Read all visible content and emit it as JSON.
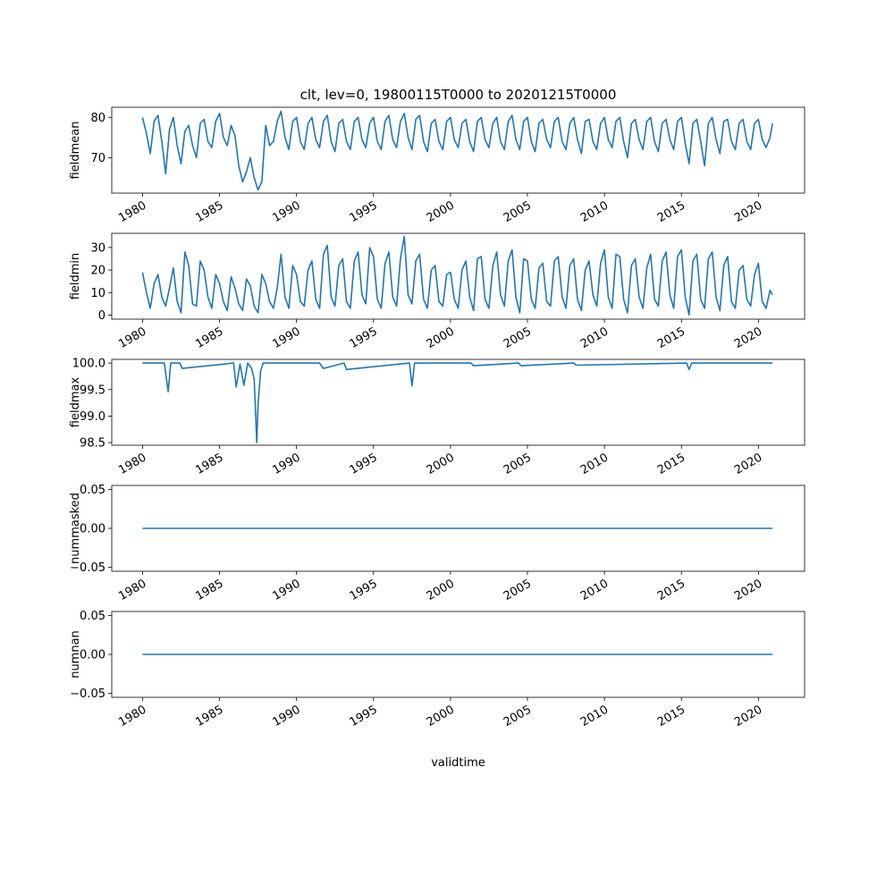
{
  "title": "clt, lev=0, 19800115T0000 to 20201215T0000",
  "xlabel": "validtime",
  "line_color": "#1f77b4",
  "x_tick_labels": [
    "1980",
    "1985",
    "1990",
    "1995",
    "2000",
    "2005",
    "2010",
    "2015",
    "2020"
  ],
  "chart_data": [
    {
      "type": "line",
      "ylabel": "fieldmean",
      "xlim": [
        "1978-01-01",
        "2023-01-01"
      ],
      "ylim": [
        61.2,
        82.5
      ],
      "yticks": [
        70,
        80
      ],
      "ytick_labels": [
        "70",
        "80"
      ],
      "series": [
        {
          "x": [
            "1980-01",
            "1980-04",
            "1980-07",
            "1980-10",
            "1981-01",
            "1981-04",
            "1981-07",
            "1981-10",
            "1982-01",
            "1982-04",
            "1982-07",
            "1982-10",
            "1983-01",
            "1983-04",
            "1983-07",
            "1983-10",
            "1984-01",
            "1984-04",
            "1984-07",
            "1984-10",
            "1985-01",
            "1985-04",
            "1985-07",
            "1985-10",
            "1986-01",
            "1986-04",
            "1986-07",
            "1986-10",
            "1987-01",
            "1987-04",
            "1987-07",
            "1987-10",
            "1988-01",
            "1988-04",
            "1988-07",
            "1988-10",
            "1989-01",
            "1989-04",
            "1989-07",
            "1989-10",
            "1990-01",
            "1990-04",
            "1990-07",
            "1990-10",
            "1991-01",
            "1991-04",
            "1991-07",
            "1991-10",
            "1992-01",
            "1992-04",
            "1992-07",
            "1992-10",
            "1993-01",
            "1993-04",
            "1993-07",
            "1993-10",
            "1994-01",
            "1994-04",
            "1994-07",
            "1994-10",
            "1995-01",
            "1995-04",
            "1995-07",
            "1995-10",
            "1996-01",
            "1996-04",
            "1996-07",
            "1996-10",
            "1997-01",
            "1997-04",
            "1997-07",
            "1997-10",
            "1998-01",
            "1998-04",
            "1998-07",
            "1998-10",
            "1999-01",
            "1999-04",
            "1999-07",
            "1999-10",
            "2000-01",
            "2000-04",
            "2000-07",
            "2000-10",
            "2001-01",
            "2001-04",
            "2001-07",
            "2001-10",
            "2002-01",
            "2002-04",
            "2002-07",
            "2002-10",
            "2003-01",
            "2003-04",
            "2003-07",
            "2003-10",
            "2004-01",
            "2004-04",
            "2004-07",
            "2004-10",
            "2005-01",
            "2005-04",
            "2005-07",
            "2005-10",
            "2006-01",
            "2006-04",
            "2006-07",
            "2006-10",
            "2007-01",
            "2007-04",
            "2007-07",
            "2007-10",
            "2008-01",
            "2008-04",
            "2008-07",
            "2008-10",
            "2009-01",
            "2009-04",
            "2009-07",
            "2009-10",
            "2010-01",
            "2010-04",
            "2010-07",
            "2010-10",
            "2011-01",
            "2011-04",
            "2011-07",
            "2011-10",
            "2012-01",
            "2012-04",
            "2012-07",
            "2012-10",
            "2013-01",
            "2013-04",
            "2013-07",
            "2013-10",
            "2014-01",
            "2014-04",
            "2014-07",
            "2014-10",
            "2015-01",
            "2015-04",
            "2015-07",
            "2015-10",
            "2016-01",
            "2016-04",
            "2016-07",
            "2016-10",
            "2017-01",
            "2017-04",
            "2017-07",
            "2017-10",
            "2018-01",
            "2018-04",
            "2018-07",
            "2018-10",
            "2019-01",
            "2019-04",
            "2019-07",
            "2019-10",
            "2020-01",
            "2020-04",
            "2020-07",
            "2020-10",
            "2020-12"
          ],
          "y": [
            80.0,
            76.0,
            71.0,
            79.0,
            80.5,
            74.0,
            66.0,
            77.0,
            80.0,
            73.0,
            68.5,
            76.5,
            78.0,
            73.0,
            70.0,
            78.5,
            79.5,
            74.0,
            72.5,
            79.0,
            81.0,
            75.0,
            73.0,
            78.0,
            75.5,
            68.0,
            64.0,
            66.5,
            70.0,
            65.0,
            62.0,
            64.0,
            78.0,
            73.0,
            74.0,
            79.0,
            81.5,
            75.0,
            72.0,
            79.0,
            80.0,
            74.0,
            72.0,
            78.5,
            80.0,
            74.5,
            72.5,
            79.0,
            80.5,
            74.0,
            71.5,
            78.5,
            79.5,
            74.0,
            72.0,
            79.0,
            80.0,
            74.5,
            72.5,
            78.5,
            80.0,
            74.0,
            72.0,
            79.0,
            80.5,
            74.5,
            72.5,
            79.0,
            81.0,
            75.0,
            72.0,
            79.5,
            80.5,
            74.0,
            71.5,
            78.5,
            79.5,
            74.0,
            72.0,
            79.0,
            80.0,
            74.5,
            72.5,
            78.5,
            79.5,
            74.0,
            71.5,
            79.0,
            80.0,
            74.5,
            72.5,
            78.5,
            80.0,
            74.0,
            72.0,
            79.0,
            80.5,
            74.5,
            72.0,
            79.0,
            80.0,
            74.0,
            71.5,
            78.5,
            79.5,
            74.5,
            72.5,
            79.0,
            80.0,
            74.0,
            72.0,
            78.5,
            80.0,
            74.5,
            71.0,
            79.0,
            79.5,
            74.0,
            72.0,
            78.5,
            80.0,
            74.5,
            72.5,
            79.0,
            80.0,
            74.0,
            70.0,
            78.5,
            79.5,
            74.5,
            72.0,
            79.0,
            80.0,
            74.0,
            71.5,
            78.5,
            79.5,
            74.5,
            72.0,
            79.0,
            80.0,
            73.5,
            68.5,
            78.5,
            79.5,
            74.0,
            68.0,
            78.5,
            80.0,
            74.5,
            71.0,
            79.0,
            79.5,
            74.0,
            72.0,
            78.5,
            79.5,
            74.0,
            72.0,
            78.5,
            79.5,
            74.5,
            72.5,
            75.0,
            78.5
          ]
        }
      ]
    },
    {
      "type": "line",
      "ylabel": "fieldmin",
      "xlim": [
        "1978-01-01",
        "2023-01-01"
      ],
      "ylim": [
        -1.8,
        36.3
      ],
      "yticks": [
        0,
        10,
        20,
        30
      ],
      "ytick_labels": [
        "0",
        "10",
        "20",
        "30"
      ],
      "series": [
        {
          "x": [
            "1980-01",
            "1980-04",
            "1980-07",
            "1980-10",
            "1981-01",
            "1981-04",
            "1981-07",
            "1981-10",
            "1982-01",
            "1982-04",
            "1982-07",
            "1982-10",
            "1983-01",
            "1983-04",
            "1983-07",
            "1983-10",
            "1984-01",
            "1984-04",
            "1984-07",
            "1984-10",
            "1985-01",
            "1985-04",
            "1985-07",
            "1985-10",
            "1986-01",
            "1986-04",
            "1986-07",
            "1986-10",
            "1987-01",
            "1987-04",
            "1987-07",
            "1987-10",
            "1988-01",
            "1988-04",
            "1988-07",
            "1988-10",
            "1989-01",
            "1989-04",
            "1989-07",
            "1989-10",
            "1990-01",
            "1990-04",
            "1990-07",
            "1990-10",
            "1991-01",
            "1991-04",
            "1991-07",
            "1991-10",
            "1992-01",
            "1992-04",
            "1992-07",
            "1992-10",
            "1993-01",
            "1993-04",
            "1993-07",
            "1993-10",
            "1994-01",
            "1994-04",
            "1994-07",
            "1994-10",
            "1995-01",
            "1995-04",
            "1995-07",
            "1995-10",
            "1996-01",
            "1996-04",
            "1996-07",
            "1996-10",
            "1997-01",
            "1997-04",
            "1997-07",
            "1997-10",
            "1998-01",
            "1998-04",
            "1998-07",
            "1998-10",
            "1999-01",
            "1999-04",
            "1999-07",
            "1999-10",
            "2000-01",
            "2000-04",
            "2000-07",
            "2000-10",
            "2001-01",
            "2001-04",
            "2001-07",
            "2001-10",
            "2002-01",
            "2002-04",
            "2002-07",
            "2002-10",
            "2003-01",
            "2003-04",
            "2003-07",
            "2003-10",
            "2004-01",
            "2004-04",
            "2004-07",
            "2004-10",
            "2005-01",
            "2005-04",
            "2005-07",
            "2005-10",
            "2006-01",
            "2006-04",
            "2006-07",
            "2006-10",
            "2007-01",
            "2007-04",
            "2007-07",
            "2007-10",
            "2008-01",
            "2008-04",
            "2008-07",
            "2008-10",
            "2009-01",
            "2009-04",
            "2009-07",
            "2009-10",
            "2010-01",
            "2010-04",
            "2010-07",
            "2010-10",
            "2011-01",
            "2011-04",
            "2011-07",
            "2011-10",
            "2012-01",
            "2012-04",
            "2012-07",
            "2012-10",
            "2013-01",
            "2013-04",
            "2013-07",
            "2013-10",
            "2014-01",
            "2014-04",
            "2014-07",
            "2014-10",
            "2015-01",
            "2015-04",
            "2015-07",
            "2015-10",
            "2016-01",
            "2016-04",
            "2016-07",
            "2016-10",
            "2017-01",
            "2017-04",
            "2017-07",
            "2017-10",
            "2018-01",
            "2018-04",
            "2018-07",
            "2018-10",
            "2019-01",
            "2019-04",
            "2019-07",
            "2019-10",
            "2020-01",
            "2020-04",
            "2020-07",
            "2020-10",
            "2020-12"
          ],
          "y": [
            19.0,
            10.0,
            3.0,
            14.0,
            18.0,
            8.0,
            4.0,
            12.0,
            21.0,
            6.0,
            1.0,
            28.0,
            22.0,
            5.0,
            4.0,
            24.0,
            20.0,
            8.0,
            3.0,
            18.0,
            14.0,
            6.0,
            2.0,
            17.0,
            12.0,
            5.0,
            2.0,
            16.0,
            13.0,
            4.0,
            1.0,
            18.0,
            14.0,
            6.0,
            3.0,
            12.0,
            27.0,
            8.0,
            3.0,
            22.0,
            18.0,
            6.0,
            4.0,
            20.0,
            24.0,
            7.0,
            3.0,
            27.0,
            31.0,
            8.0,
            4.0,
            22.0,
            25.0,
            6.0,
            3.0,
            24.0,
            28.0,
            9.0,
            5.0,
            30.0,
            26.0,
            7.0,
            3.0,
            23.0,
            28.0,
            8.0,
            4.0,
            25.0,
            35.0,
            9.0,
            5.0,
            24.0,
            27.0,
            7.0,
            3.0,
            20.0,
            22.0,
            6.0,
            4.0,
            18.0,
            19.0,
            7.0,
            3.0,
            20.0,
            24.0,
            8.0,
            2.0,
            25.0,
            26.0,
            7.0,
            3.0,
            22.0,
            28.0,
            9.0,
            4.0,
            24.0,
            29.0,
            8.0,
            1.0,
            25.0,
            24.0,
            7.0,
            3.0,
            21.0,
            23.0,
            6.0,
            4.0,
            24.0,
            26.0,
            8.0,
            3.0,
            22.0,
            25.0,
            7.0,
            2.0,
            20.0,
            24.0,
            9.0,
            4.0,
            23.0,
            29.0,
            8.0,
            3.0,
            27.0,
            26.0,
            7.0,
            1.0,
            22.0,
            25.0,
            8.0,
            3.0,
            21.0,
            27.0,
            7.0,
            4.0,
            24.0,
            28.0,
            9.0,
            3.0,
            26.0,
            29.0,
            8.0,
            0.0,
            24.0,
            27.0,
            7.0,
            3.0,
            25.0,
            28.0,
            8.0,
            2.0,
            22.0,
            26.0,
            6.0,
            3.0,
            20.0,
            22.0,
            7.0,
            4.0,
            18.0,
            23.0,
            6.0,
            3.0,
            11.0,
            9.0
          ]
        }
      ]
    },
    {
      "type": "line",
      "ylabel": "fieldmax",
      "xlim": [
        "1978-01-01",
        "2023-01-01"
      ],
      "ylim": [
        98.45,
        100.07
      ],
      "yticks": [
        98.5,
        99.0,
        99.5,
        100.0
      ],
      "ytick_labels": [
        "98.5",
        "99.0",
        "99.5",
        "100.0"
      ],
      "series": [
        {
          "x": [
            "1980-01",
            "1981-06",
            "1981-09",
            "1981-11",
            "1982-06",
            "1982-08",
            "1985-12",
            "1986-02",
            "1986-05",
            "1986-08",
            "1986-11",
            "1987-02",
            "1987-04",
            "1987-06",
            "1987-07",
            "1987-09",
            "1987-11",
            "1988-04",
            "1991-07",
            "1991-10",
            "1993-02",
            "1993-04",
            "1997-05",
            "1997-07",
            "1997-09",
            "2001-05",
            "2001-07",
            "2004-06",
            "2004-08",
            "2008-01",
            "2008-03",
            "2015-05",
            "2015-07",
            "2015-09",
            "2020-12"
          ],
          "y": [
            100.0,
            100.0,
            99.46,
            100.0,
            100.0,
            99.9,
            100.0,
            99.55,
            99.98,
            99.58,
            100.0,
            99.9,
            99.7,
            98.5,
            99.2,
            99.85,
            100.0,
            100.0,
            100.0,
            99.9,
            100.0,
            99.88,
            100.0,
            99.57,
            100.0,
            100.0,
            99.95,
            100.0,
            99.95,
            100.0,
            99.96,
            100.0,
            99.88,
            100.0,
            100.0
          ]
        }
      ]
    },
    {
      "type": "line",
      "ylabel": "nummasked",
      "xlim": [
        "1978-01-01",
        "2023-01-01"
      ],
      "ylim": [
        -0.055,
        0.055
      ],
      "yticks": [
        -0.05,
        0.0,
        0.05
      ],
      "ytick_labels": [
        "−0.05",
        "0.00",
        "0.05"
      ],
      "series": [
        {
          "x": [
            "1980-01",
            "2020-12"
          ],
          "y": [
            0,
            0
          ]
        }
      ]
    },
    {
      "type": "line",
      "ylabel": "numnan",
      "xlim": [
        "1978-01-01",
        "2023-01-01"
      ],
      "ylim": [
        -0.055,
        0.055
      ],
      "yticks": [
        -0.05,
        0.0,
        0.05
      ],
      "ytick_labels": [
        "−0.05",
        "0.00",
        "0.05"
      ],
      "series": [
        {
          "x": [
            "1980-01",
            "2020-12"
          ],
          "y": [
            0,
            0
          ]
        }
      ]
    }
  ]
}
